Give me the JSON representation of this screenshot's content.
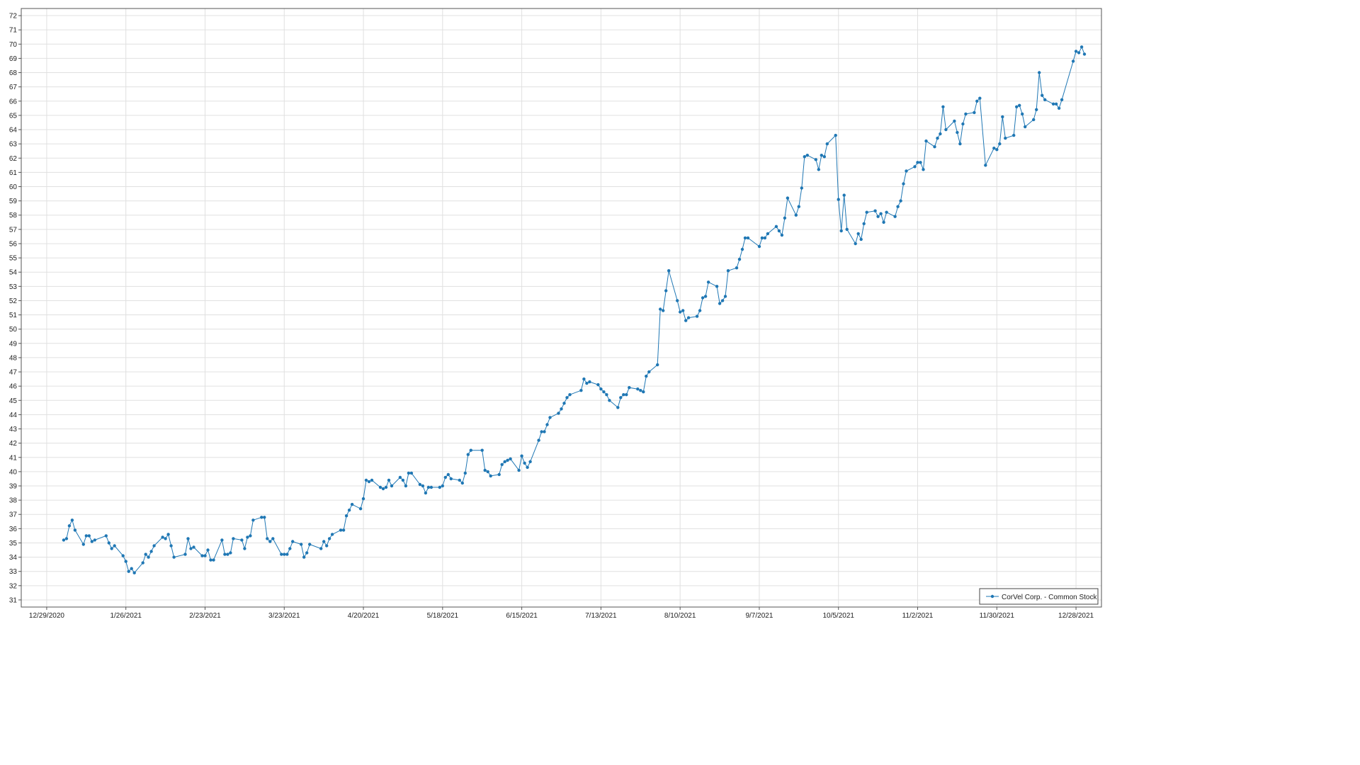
{
  "colors": {
    "series": "#1f77b4",
    "grid": "#e0e0e0",
    "frame": "#555555",
    "background": "#ffffff"
  },
  "chart_data": {
    "type": "line",
    "title": "",
    "xlabel": "",
    "ylabel": "",
    "x_ticks": [
      "12/29/2020",
      "1/26/2021",
      "2/23/2021",
      "3/23/2021",
      "4/20/2021",
      "5/18/2021",
      "6/15/2021",
      "7/13/2021",
      "8/10/2021",
      "9/7/2021",
      "10/5/2021",
      "11/2/2021",
      "11/30/2021",
      "12/28/2021"
    ],
    "xlim": [
      "2020-12-20",
      "2022-01-06"
    ],
    "ylim": [
      30.5,
      72.5
    ],
    "y_ticks": [
      31,
      32,
      33,
      34,
      35,
      36,
      37,
      38,
      39,
      40,
      41,
      42,
      43,
      44,
      45,
      46,
      47,
      48,
      49,
      50,
      51,
      52,
      53,
      54,
      55,
      56,
      57,
      58,
      59,
      60,
      61,
      62,
      63,
      64,
      65,
      66,
      67,
      68,
      69,
      70,
      71,
      72
    ],
    "grid": true,
    "legend_position": "bottom-right",
    "series": [
      {
        "name": "CorVel Corp. - Common Stock",
        "marker": "circle",
        "points": [
          [
            "2021-01-04",
            35.2
          ],
          [
            "2021-01-05",
            35.3
          ],
          [
            "2021-01-06",
            36.2
          ],
          [
            "2021-01-07",
            36.6
          ],
          [
            "2021-01-08",
            35.9
          ],
          [
            "2021-01-11",
            34.9
          ],
          [
            "2021-01-12",
            35.5
          ],
          [
            "2021-01-13",
            35.5
          ],
          [
            "2021-01-14",
            35.1
          ],
          [
            "2021-01-15",
            35.2
          ],
          [
            "2021-01-19",
            35.5
          ],
          [
            "2021-01-20",
            35.0
          ],
          [
            "2021-01-21",
            34.6
          ],
          [
            "2021-01-22",
            34.8
          ],
          [
            "2021-01-25",
            34.1
          ],
          [
            "2021-01-26",
            33.7
          ],
          [
            "2021-01-27",
            33.0
          ],
          [
            "2021-01-28",
            33.2
          ],
          [
            "2021-01-29",
            32.9
          ],
          [
            "2021-02-01",
            33.6
          ],
          [
            "2021-02-02",
            34.2
          ],
          [
            "2021-02-03",
            34.0
          ],
          [
            "2021-02-04",
            34.4
          ],
          [
            "2021-02-05",
            34.8
          ],
          [
            "2021-02-08",
            35.4
          ],
          [
            "2021-02-09",
            35.3
          ],
          [
            "2021-02-10",
            35.6
          ],
          [
            "2021-02-11",
            34.8
          ],
          [
            "2021-02-12",
            34.0
          ],
          [
            "2021-02-16",
            34.2
          ],
          [
            "2021-02-17",
            35.3
          ],
          [
            "2021-02-18",
            34.6
          ],
          [
            "2021-02-19",
            34.7
          ],
          [
            "2021-02-22",
            34.1
          ],
          [
            "2021-02-23",
            34.1
          ],
          [
            "2021-02-24",
            34.5
          ],
          [
            "2021-02-25",
            33.8
          ],
          [
            "2021-02-26",
            33.8
          ],
          [
            "2021-03-01",
            35.2
          ],
          [
            "2021-03-02",
            34.2
          ],
          [
            "2021-03-03",
            34.2
          ],
          [
            "2021-03-04",
            34.3
          ],
          [
            "2021-03-05",
            35.3
          ],
          [
            "2021-03-08",
            35.2
          ],
          [
            "2021-03-09",
            34.6
          ],
          [
            "2021-03-10",
            35.4
          ],
          [
            "2021-03-11",
            35.5
          ],
          [
            "2021-03-12",
            36.6
          ],
          [
            "2021-03-15",
            36.8
          ],
          [
            "2021-03-16",
            36.8
          ],
          [
            "2021-03-17",
            35.3
          ],
          [
            "2021-03-18",
            35.1
          ],
          [
            "2021-03-19",
            35.3
          ],
          [
            "2021-03-22",
            34.2
          ],
          [
            "2021-03-23",
            34.2
          ],
          [
            "2021-03-24",
            34.2
          ],
          [
            "2021-03-25",
            34.6
          ],
          [
            "2021-03-26",
            35.1
          ],
          [
            "2021-03-29",
            34.9
          ],
          [
            "2021-03-30",
            34.0
          ],
          [
            "2021-03-31",
            34.3
          ],
          [
            "2021-04-01",
            34.9
          ],
          [
            "2021-04-05",
            34.6
          ],
          [
            "2021-04-06",
            35.1
          ],
          [
            "2021-04-07",
            34.8
          ],
          [
            "2021-04-08",
            35.3
          ],
          [
            "2021-04-09",
            35.6
          ],
          [
            "2021-04-12",
            35.9
          ],
          [
            "2021-04-13",
            35.9
          ],
          [
            "2021-04-14",
            36.9
          ],
          [
            "2021-04-15",
            37.3
          ],
          [
            "2021-04-16",
            37.7
          ],
          [
            "2021-04-19",
            37.4
          ],
          [
            "2021-04-20",
            38.1
          ],
          [
            "2021-04-21",
            39.4
          ],
          [
            "2021-04-22",
            39.3
          ],
          [
            "2021-04-23",
            39.4
          ],
          [
            "2021-04-26",
            38.9
          ],
          [
            "2021-04-27",
            38.8
          ],
          [
            "2021-04-28",
            38.9
          ],
          [
            "2021-04-29",
            39.4
          ],
          [
            "2021-04-30",
            39.0
          ],
          [
            "2021-05-03",
            39.6
          ],
          [
            "2021-05-04",
            39.4
          ],
          [
            "2021-05-05",
            39.0
          ],
          [
            "2021-05-06",
            39.9
          ],
          [
            "2021-05-07",
            39.9
          ],
          [
            "2021-05-10",
            39.1
          ],
          [
            "2021-05-11",
            39.0
          ],
          [
            "2021-05-12",
            38.5
          ],
          [
            "2021-05-13",
            38.9
          ],
          [
            "2021-05-14",
            38.9
          ],
          [
            "2021-05-17",
            38.9
          ],
          [
            "2021-05-18",
            39.0
          ],
          [
            "2021-05-19",
            39.6
          ],
          [
            "2021-05-20",
            39.8
          ],
          [
            "2021-05-21",
            39.5
          ],
          [
            "2021-05-24",
            39.4
          ],
          [
            "2021-05-25",
            39.2
          ],
          [
            "2021-05-26",
            39.9
          ],
          [
            "2021-05-27",
            41.2
          ],
          [
            "2021-05-28",
            41.5
          ],
          [
            "2021-06-01",
            41.5
          ],
          [
            "2021-06-02",
            40.1
          ],
          [
            "2021-06-03",
            40.0
          ],
          [
            "2021-06-04",
            39.7
          ],
          [
            "2021-06-07",
            39.8
          ],
          [
            "2021-06-08",
            40.5
          ],
          [
            "2021-06-09",
            40.7
          ],
          [
            "2021-06-10",
            40.8
          ],
          [
            "2021-06-11",
            40.9
          ],
          [
            "2021-06-14",
            40.1
          ],
          [
            "2021-06-15",
            41.1
          ],
          [
            "2021-06-16",
            40.6
          ],
          [
            "2021-06-17",
            40.3
          ],
          [
            "2021-06-18",
            40.7
          ],
          [
            "2021-06-21",
            42.2
          ],
          [
            "2021-06-22",
            42.8
          ],
          [
            "2021-06-23",
            42.8
          ],
          [
            "2021-06-24",
            43.3
          ],
          [
            "2021-06-25",
            43.8
          ],
          [
            "2021-06-28",
            44.1
          ],
          [
            "2021-06-29",
            44.4
          ],
          [
            "2021-06-30",
            44.8
          ],
          [
            "2021-07-01",
            45.2
          ],
          [
            "2021-07-02",
            45.4
          ],
          [
            "2021-07-06",
            45.7
          ],
          [
            "2021-07-07",
            46.5
          ],
          [
            "2021-07-08",
            46.2
          ],
          [
            "2021-07-09",
            46.3
          ],
          [
            "2021-07-12",
            46.1
          ],
          [
            "2021-07-13",
            45.8
          ],
          [
            "2021-07-14",
            45.6
          ],
          [
            "2021-07-15",
            45.4
          ],
          [
            "2021-07-16",
            45.0
          ],
          [
            "2021-07-19",
            44.5
          ],
          [
            "2021-07-20",
            45.2
          ],
          [
            "2021-07-21",
            45.4
          ],
          [
            "2021-07-22",
            45.4
          ],
          [
            "2021-07-23",
            45.9
          ],
          [
            "2021-07-26",
            45.8
          ],
          [
            "2021-07-27",
            45.7
          ],
          [
            "2021-07-28",
            45.6
          ],
          [
            "2021-07-29",
            46.7
          ],
          [
            "2021-07-30",
            47.0
          ],
          [
            "2021-08-02",
            47.5
          ],
          [
            "2021-08-03",
            51.4
          ],
          [
            "2021-08-04",
            51.3
          ],
          [
            "2021-08-05",
            52.7
          ],
          [
            "2021-08-06",
            54.1
          ],
          [
            "2021-08-09",
            52.0
          ],
          [
            "2021-08-10",
            51.2
          ],
          [
            "2021-08-11",
            51.3
          ],
          [
            "2021-08-12",
            50.6
          ],
          [
            "2021-08-13",
            50.8
          ],
          [
            "2021-08-16",
            50.9
          ],
          [
            "2021-08-17",
            51.3
          ],
          [
            "2021-08-18",
            52.2
          ],
          [
            "2021-08-19",
            52.3
          ],
          [
            "2021-08-20",
            53.3
          ],
          [
            "2021-08-23",
            53.0
          ],
          [
            "2021-08-24",
            51.8
          ],
          [
            "2021-08-25",
            52.0
          ],
          [
            "2021-08-26",
            52.3
          ],
          [
            "2021-08-27",
            54.1
          ],
          [
            "2021-08-30",
            54.3
          ],
          [
            "2021-08-31",
            54.9
          ],
          [
            "2021-09-01",
            55.6
          ],
          [
            "2021-09-02",
            56.4
          ],
          [
            "2021-09-03",
            56.4
          ],
          [
            "2021-09-07",
            55.8
          ],
          [
            "2021-09-08",
            56.4
          ],
          [
            "2021-09-09",
            56.4
          ],
          [
            "2021-09-10",
            56.7
          ],
          [
            "2021-09-13",
            57.2
          ],
          [
            "2021-09-14",
            56.9
          ],
          [
            "2021-09-15",
            56.6
          ],
          [
            "2021-09-16",
            57.8
          ],
          [
            "2021-09-17",
            59.2
          ],
          [
            "2021-09-20",
            58.0
          ],
          [
            "2021-09-21",
            58.6
          ],
          [
            "2021-09-22",
            59.9
          ],
          [
            "2021-09-23",
            62.1
          ],
          [
            "2021-09-24",
            62.2
          ],
          [
            "2021-09-27",
            61.9
          ],
          [
            "2021-09-28",
            61.2
          ],
          [
            "2021-09-29",
            62.2
          ],
          [
            "2021-09-30",
            62.1
          ],
          [
            "2021-10-01",
            63.0
          ],
          [
            "2021-10-04",
            63.6
          ],
          [
            "2021-10-05",
            59.1
          ],
          [
            "2021-10-06",
            56.9
          ],
          [
            "2021-10-07",
            59.4
          ],
          [
            "2021-10-08",
            57.0
          ],
          [
            "2021-10-11",
            56.0
          ],
          [
            "2021-10-12",
            56.7
          ],
          [
            "2021-10-13",
            56.3
          ],
          [
            "2021-10-14",
            57.4
          ],
          [
            "2021-10-15",
            58.2
          ],
          [
            "2021-10-18",
            58.3
          ],
          [
            "2021-10-19",
            57.9
          ],
          [
            "2021-10-20",
            58.1
          ],
          [
            "2021-10-21",
            57.5
          ],
          [
            "2021-10-22",
            58.2
          ],
          [
            "2021-10-25",
            57.9
          ],
          [
            "2021-10-26",
            58.6
          ],
          [
            "2021-10-27",
            59.0
          ],
          [
            "2021-10-28",
            60.2
          ],
          [
            "2021-10-29",
            61.1
          ],
          [
            "2021-11-01",
            61.4
          ],
          [
            "2021-11-02",
            61.7
          ],
          [
            "2021-11-03",
            61.7
          ],
          [
            "2021-11-04",
            61.2
          ],
          [
            "2021-11-05",
            63.2
          ],
          [
            "2021-11-08",
            62.8
          ],
          [
            "2021-11-09",
            63.4
          ],
          [
            "2021-11-10",
            63.7
          ],
          [
            "2021-11-11",
            65.6
          ],
          [
            "2021-11-12",
            64.0
          ],
          [
            "2021-11-15",
            64.6
          ],
          [
            "2021-11-16",
            63.8
          ],
          [
            "2021-11-17",
            63.0
          ],
          [
            "2021-11-18",
            64.4
          ],
          [
            "2021-11-19",
            65.1
          ],
          [
            "2021-11-22",
            65.2
          ],
          [
            "2021-11-23",
            66.0
          ],
          [
            "2021-11-24",
            66.2
          ],
          [
            "2021-11-26",
            61.5
          ],
          [
            "2021-11-29",
            62.7
          ],
          [
            "2021-11-30",
            62.6
          ],
          [
            "2021-12-01",
            63.0
          ],
          [
            "2021-12-02",
            64.9
          ],
          [
            "2021-12-03",
            63.4
          ],
          [
            "2021-12-06",
            63.6
          ],
          [
            "2021-12-07",
            65.6
          ],
          [
            "2021-12-08",
            65.7
          ],
          [
            "2021-12-09",
            65.1
          ],
          [
            "2021-12-10",
            64.2
          ],
          [
            "2021-12-13",
            64.7
          ],
          [
            "2021-12-14",
            65.4
          ],
          [
            "2021-12-15",
            68.0
          ],
          [
            "2021-12-16",
            66.4
          ],
          [
            "2021-12-17",
            66.1
          ],
          [
            "2021-12-20",
            65.8
          ],
          [
            "2021-12-21",
            65.8
          ],
          [
            "2021-12-22",
            65.5
          ],
          [
            "2021-12-23",
            66.1
          ],
          [
            "2021-12-27",
            68.8
          ],
          [
            "2021-12-28",
            69.5
          ],
          [
            "2021-12-29",
            69.4
          ],
          [
            "2021-12-30",
            69.8
          ],
          [
            "2021-12-31",
            69.3
          ]
        ]
      }
    ]
  }
}
